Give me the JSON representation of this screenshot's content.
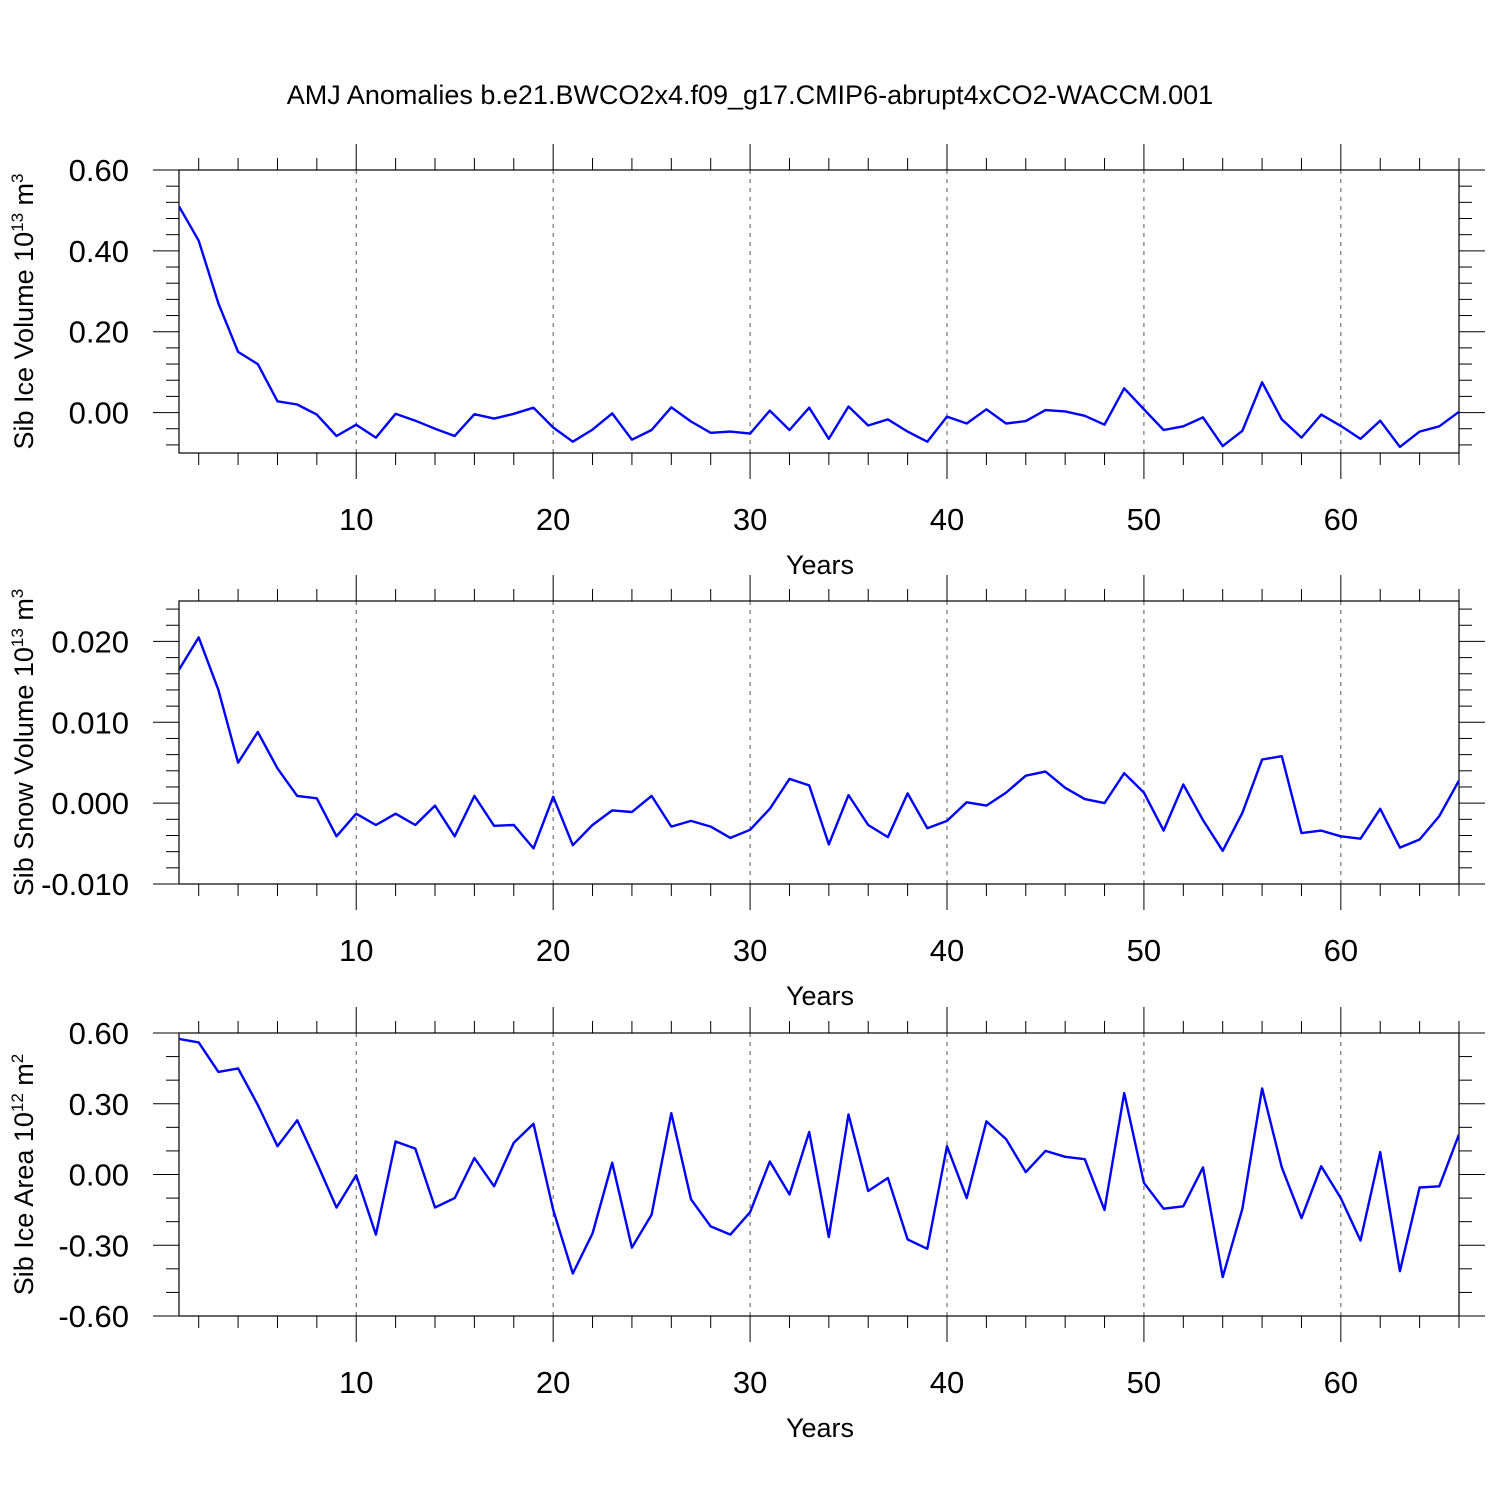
{
  "title": "AMJ Anomalies b.e21.BWCO2x4.f09_g17.CMIP6-abrupt4xCO2-WACCM.001",
  "line_color": "#0000ff",
  "chart_data": [
    {
      "type": "line",
      "id": "ice-volume",
      "ylabel": "Sib Ice Volume 10",
      "ylabel_exp": "13",
      "ylabel_unit": " m",
      "ylabel_unit_exp": "3",
      "xlabel": "Years",
      "xlim": [
        1,
        66
      ],
      "ylim": [
        -0.1,
        0.6
      ],
      "yticks": [
        0.0,
        0.2,
        0.4,
        0.6
      ],
      "ytick_labels": [
        "0.00",
        "0.20",
        "0.40",
        "0.60"
      ],
      "yminor_step": 0.04,
      "xticks": [
        10,
        20,
        30,
        40,
        50,
        60
      ],
      "xtick_labels": [
        "10",
        "20",
        "30",
        "40",
        "50",
        "60"
      ],
      "x_start": 1,
      "values": [
        0.51,
        0.425,
        0.27,
        0.15,
        0.12,
        0.028,
        0.02,
        -0.005,
        -0.058,
        -0.03,
        -0.062,
        -0.003,
        -0.02,
        -0.04,
        -0.058,
        -0.004,
        -0.015,
        -0.003,
        0.012,
        -0.037,
        -0.072,
        -0.042,
        -0.002,
        -0.067,
        -0.043,
        0.013,
        -0.022,
        -0.05,
        -0.047,
        -0.052,
        0.005,
        -0.043,
        0.012,
        -0.065,
        0.015,
        -0.032,
        -0.017,
        -0.047,
        -0.072,
        -0.01,
        -0.027,
        0.008,
        -0.027,
        -0.021,
        0.006,
        0.003,
        -0.008,
        -0.03,
        0.06,
        0.008,
        -0.043,
        -0.034,
        -0.012,
        -0.083,
        -0.045,
        0.075,
        -0.017,
        -0.062,
        -0.005,
        -0.033,
        -0.065,
        -0.02,
        -0.085,
        -0.047,
        -0.034,
        0.002
      ]
    },
    {
      "type": "line",
      "id": "snow-volume",
      "ylabel": "Sib Snow Volume 10",
      "ylabel_exp": "13",
      "ylabel_unit": " m",
      "ylabel_unit_exp": "3",
      "xlabel": "Years",
      "xlim": [
        1,
        66
      ],
      "ylim": [
        -0.01,
        0.025
      ],
      "yticks": [
        -0.01,
        0.0,
        0.01,
        0.02
      ],
      "ytick_labels": [
        "-0.010",
        "0.000",
        "0.010",
        "0.020"
      ],
      "yminor_step": 0.002,
      "xticks": [
        10,
        20,
        30,
        40,
        50,
        60
      ],
      "xtick_labels": [
        "10",
        "20",
        "30",
        "40",
        "50",
        "60"
      ],
      "x_start": 1,
      "values": [
        0.0165,
        0.0205,
        0.014,
        0.005,
        0.0088,
        0.0043,
        0.0009,
        0.0006,
        -0.0041,
        -0.0013,
        -0.0027,
        -0.0013,
        -0.0027,
        -0.0003,
        -0.0041,
        0.0009,
        -0.0028,
        -0.0027,
        -0.0056,
        0.0008,
        -0.0052,
        -0.0027,
        -0.0009,
        -0.0011,
        0.0009,
        -0.0029,
        -0.0022,
        -0.0029,
        -0.0043,
        -0.0033,
        -0.0007,
        0.003,
        0.0022,
        -0.0051,
        0.001,
        -0.0027,
        -0.0042,
        0.0012,
        -0.0031,
        -0.0022,
        0.0001,
        -0.0003,
        0.0013,
        0.0034,
        0.0039,
        0.0019,
        0.0005,
        0.0,
        0.0037,
        0.0013,
        -0.0034,
        0.0023,
        -0.0021,
        -0.0059,
        -0.0012,
        0.0054,
        0.0058,
        -0.0037,
        -0.0034,
        -0.0041,
        -0.0044,
        -0.0007,
        -0.0055,
        -0.0045,
        -0.0016,
        0.0028
      ]
    },
    {
      "type": "line",
      "id": "ice-area",
      "ylabel": "Sib Ice Area 10",
      "ylabel_exp": "12",
      "ylabel_unit": " m",
      "ylabel_unit_exp": "2",
      "xlabel": "Years",
      "xlim": [
        1,
        66
      ],
      "ylim": [
        -0.6,
        0.6
      ],
      "yticks": [
        -0.6,
        -0.3,
        0.0,
        0.3,
        0.6
      ],
      "ytick_labels": [
        "-0.60",
        "-0.30",
        "0.00",
        "0.30",
        "0.60"
      ],
      "yminor_step": 0.1,
      "xticks": [
        10,
        20,
        30,
        40,
        50,
        60
      ],
      "xtick_labels": [
        "10",
        "20",
        "30",
        "40",
        "50",
        "60"
      ],
      "x_start": 1,
      "values": [
        0.575,
        0.56,
        0.435,
        0.45,
        0.295,
        0.12,
        0.23,
        0.05,
        -0.14,
        -0.003,
        -0.255,
        0.14,
        0.11,
        -0.14,
        -0.1,
        0.07,
        -0.05,
        0.135,
        0.215,
        -0.15,
        -0.42,
        -0.25,
        0.05,
        -0.31,
        -0.17,
        0.26,
        -0.105,
        -0.22,
        -0.255,
        -0.16,
        0.055,
        -0.085,
        0.18,
        -0.265,
        0.255,
        -0.07,
        -0.015,
        -0.275,
        -0.315,
        0.12,
        -0.1,
        0.225,
        0.15,
        0.01,
        0.1,
        0.075,
        0.065,
        -0.15,
        0.345,
        -0.035,
        -0.145,
        -0.135,
        0.03,
        -0.435,
        -0.145,
        0.365,
        0.03,
        -0.185,
        0.035,
        -0.1,
        -0.28,
        0.095,
        -0.41,
        -0.055,
        -0.05,
        0.17
      ]
    }
  ]
}
